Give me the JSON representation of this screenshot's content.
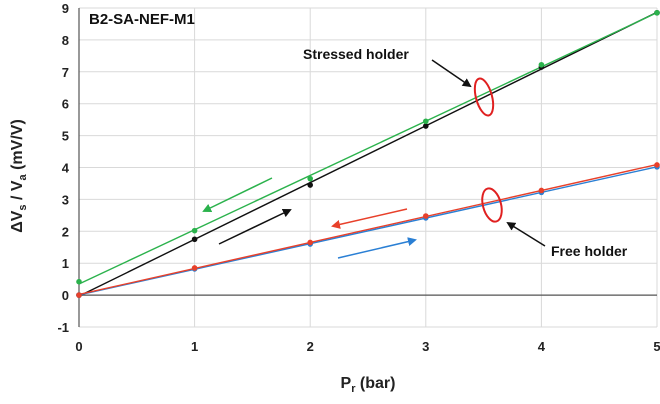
{
  "chart_data": {
    "type": "line",
    "title": "B2-SA-NEF-M1",
    "xlabel": "P",
    "xlabel_sub": "r",
    "xlabel_unit": " (bar)",
    "ylabel_parts": [
      "ΔV",
      "s",
      " / V",
      "a",
      " (mV/V)"
    ],
    "xlim": [
      0,
      5
    ],
    "ylim": [
      -1,
      9
    ],
    "x_ticks": [
      0,
      1,
      2,
      3,
      4,
      5
    ],
    "y_ticks": [
      -1,
      0,
      1,
      2,
      3,
      4,
      5,
      6,
      7,
      8,
      9
    ],
    "grid": true,
    "series": [
      {
        "key": "stressed_load",
        "color": "#111111",
        "x": [
          0,
          1,
          2,
          3,
          4,
          5
        ],
        "y": [
          0.0,
          1.75,
          3.45,
          5.3,
          7.15,
          8.85
        ]
      },
      {
        "key": "stressed_unload",
        "color": "#2bb24c",
        "x": [
          0,
          1,
          2,
          3,
          4,
          5
        ],
        "y": [
          0.42,
          2.02,
          3.65,
          5.45,
          7.22,
          8.85
        ]
      },
      {
        "key": "free_load",
        "color": "#2a7fd4",
        "x": [
          0,
          1,
          2,
          3,
          4,
          5
        ],
        "y": [
          0.0,
          0.82,
          1.6,
          2.42,
          3.22,
          4.02
        ]
      },
      {
        "key": "free_unload",
        "color": "#e8402a",
        "x": [
          0,
          1,
          2,
          3,
          4,
          5
        ],
        "y": [
          0.0,
          0.85,
          1.65,
          2.48,
          3.28,
          4.08
        ]
      }
    ],
    "annotations": [
      {
        "text": "Stressed holder"
      },
      {
        "text": "Free holder"
      }
    ]
  }
}
